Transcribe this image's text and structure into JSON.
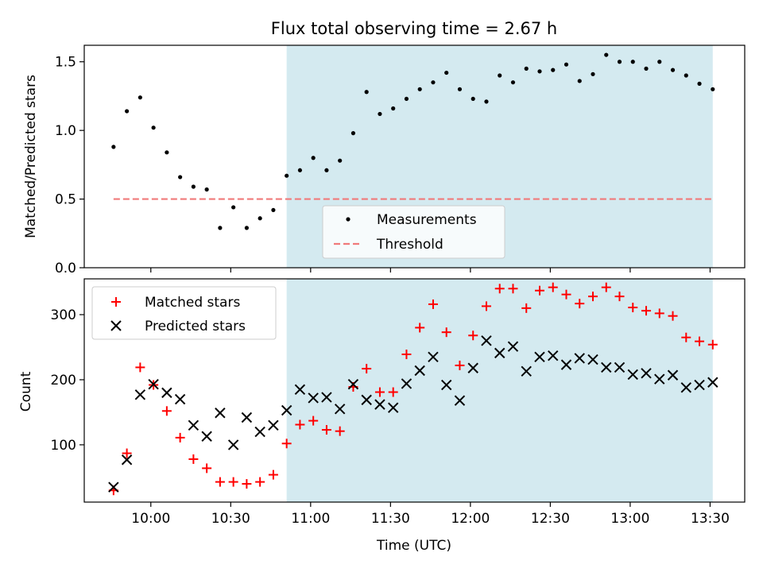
{
  "chart_data": [
    {
      "type": "scatter",
      "title": "Flux total observing time = 2.67 h",
      "xlabel": "",
      "ylabel": "Matched/Predicted stars",
      "ylim": [
        0,
        1.62
      ],
      "xlim_minutes_utc": [
        575,
        823
      ],
      "x_ticks": [
        {
          "t": 600,
          "label": ""
        },
        {
          "t": 630,
          "label": ""
        },
        {
          "t": 660,
          "label": ""
        },
        {
          "t": 690,
          "label": ""
        },
        {
          "t": 720,
          "label": ""
        },
        {
          "t": 750,
          "label": ""
        },
        {
          "t": 780,
          "label": ""
        },
        {
          "t": 810,
          "label": ""
        }
      ],
      "y_ticks": [
        {
          "v": 0.0,
          "label": "0.0"
        },
        {
          "v": 0.5,
          "label": "0.5"
        },
        {
          "t": 0,
          "v": 1.0,
          "label": "1.0"
        },
        {
          "v": 1.5,
          "label": "1.5"
        }
      ],
      "shaded_region": {
        "from": 651,
        "to": 811,
        "color": "#d4eaf0"
      },
      "threshold": {
        "name": "Threshold",
        "value": 0.5,
        "from": 586,
        "to": 811,
        "color": "#f07a7a"
      },
      "series": [
        {
          "name": "Measurements",
          "color": "#000000",
          "marker": "dot",
          "x": [
            586,
            591,
            596,
            601,
            606,
            611,
            616,
            621,
            626,
            631,
            636,
            641,
            646,
            651,
            656,
            661,
            666,
            671,
            676,
            681,
            686,
            691,
            696,
            701,
            706,
            711,
            716,
            721,
            726,
            731,
            736,
            741,
            746,
            751,
            756,
            761,
            766,
            771,
            776,
            781,
            786,
            791,
            796,
            801,
            806,
            811
          ],
          "y": [
            0.88,
            1.14,
            1.24,
            1.02,
            0.84,
            0.66,
            0.59,
            0.57,
            0.29,
            0.44,
            0.29,
            0.36,
            0.42,
            0.67,
            0.71,
            0.8,
            0.71,
            0.78,
            0.98,
            1.28,
            1.12,
            1.16,
            1.23,
            1.3,
            1.35,
            1.42,
            1.3,
            1.23,
            1.21,
            1.4,
            1.35,
            1.45,
            1.43,
            1.44,
            1.48,
            1.36,
            1.41,
            1.55,
            1.5,
            1.5,
            1.45,
            1.5,
            1.44,
            1.4,
            1.34,
            1.3
          ]
        }
      ],
      "legend": {
        "position": "lower-center",
        "entries": [
          "Measurements",
          "Threshold"
        ]
      }
    },
    {
      "type": "scatter",
      "title": "",
      "xlabel": "Time (UTC)",
      "ylabel": "Count",
      "ylim": [
        12,
        355
      ],
      "xlim_minutes_utc": [
        575,
        823
      ],
      "x_ticks": [
        {
          "t": 600,
          "label": "10:00"
        },
        {
          "t": 630,
          "label": "10:30"
        },
        {
          "t": 660,
          "label": "11:00"
        },
        {
          "t": 690,
          "label": "11:30"
        },
        {
          "t": 720,
          "label": "12:00"
        },
        {
          "t": 750,
          "label": "12:30"
        },
        {
          "t": 780,
          "label": "13:00"
        },
        {
          "t": 810,
          "label": "13:30"
        }
      ],
      "y_ticks": [
        {
          "v": 100,
          "label": "100"
        },
        {
          "v": 200,
          "label": "200"
        },
        {
          "v": 300,
          "label": "300"
        }
      ],
      "shaded_region": {
        "from": 651,
        "to": 811,
        "color": "#d4eaf0"
      },
      "series": [
        {
          "name": "Matched stars",
          "color": "#ff0000",
          "marker": "plus",
          "x": [
            586,
            591,
            596,
            601,
            606,
            611,
            616,
            621,
            626,
            631,
            636,
            641,
            646,
            651,
            656,
            661,
            666,
            671,
            676,
            681,
            686,
            691,
            696,
            701,
            706,
            711,
            716,
            721,
            726,
            731,
            736,
            741,
            746,
            751,
            756,
            761,
            766,
            771,
            776,
            781,
            786,
            791,
            796,
            801,
            806,
            811
          ],
          "y": [
            30,
            87,
            219,
            192,
            152,
            111,
            78,
            64,
            43,
            43,
            40,
            43,
            54,
            102,
            131,
            137,
            123,
            121,
            189,
            217,
            181,
            181,
            239,
            280,
            316,
            273,
            222,
            268,
            313,
            340,
            340,
            310,
            337,
            342,
            331,
            317,
            328,
            342,
            328,
            311,
            306,
            302,
            298,
            265,
            259,
            254
          ]
        },
        {
          "name": "Predicted stars",
          "color": "#000000",
          "marker": "x",
          "x": [
            586,
            591,
            596,
            601,
            606,
            611,
            616,
            621,
            626,
            631,
            636,
            641,
            646,
            651,
            656,
            661,
            666,
            671,
            676,
            681,
            686,
            691,
            696,
            701,
            706,
            711,
            716,
            721,
            726,
            731,
            736,
            741,
            746,
            751,
            756,
            761,
            766,
            771,
            776,
            781,
            786,
            791,
            796,
            801,
            806,
            811
          ],
          "y": [
            35,
            77,
            177,
            193,
            180,
            170,
            130,
            113,
            149,
            100,
            142,
            120,
            130,
            153,
            185,
            172,
            173,
            155,
            193,
            169,
            162,
            157,
            194,
            214,
            235,
            192,
            168,
            218,
            260,
            241,
            251,
            213,
            235,
            237,
            223,
            233,
            231,
            219,
            219,
            208,
            210,
            201,
            207,
            188,
            192,
            196
          ]
        }
      ],
      "legend": {
        "position": "upper-left",
        "entries": [
          "Matched stars",
          "Predicted stars"
        ]
      }
    }
  ]
}
